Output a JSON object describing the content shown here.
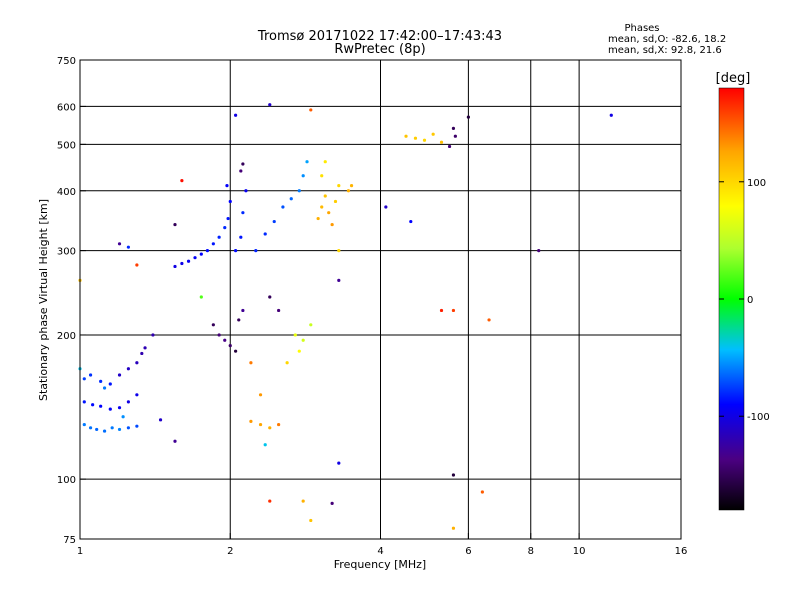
{
  "chart_data": {
    "type": "scatter",
    "title": "Tromsø 20171022 17:42:00–17:43:43",
    "subtitle": "RwPretec (8p)",
    "xlabel": "Frequency [MHz]",
    "ylabel": "Stationary phase Virtual Height [km]",
    "x_scale": "log",
    "y_scale": "log",
    "xlim": [
      1,
      16
    ],
    "ylim": [
      75,
      750
    ],
    "x_ticks": [
      1,
      2,
      4,
      6,
      8,
      10,
      16
    ],
    "y_ticks": [
      75,
      100,
      200,
      300,
      400,
      500,
      600,
      750
    ],
    "x_gridlines": [
      2,
      4,
      6,
      8,
      10
    ],
    "y_gridlines": [
      100,
      200,
      300,
      400,
      500,
      600
    ],
    "grid": true,
    "phases_box": {
      "title": "Phases",
      "line1": "mean, sd,O: -82.6, 18.2",
      "line2": "mean, sd,X:  92.8, 21.6"
    },
    "colorbar": {
      "label": "[deg]",
      "range": [
        -180,
        180
      ],
      "ticks": [
        100,
        0,
        -100
      ]
    },
    "series": [
      {
        "points": [
          {
            "x": 1.02,
            "y": 130,
            "phase": -60
          },
          {
            "x": 1.05,
            "y": 128,
            "phase": -62
          },
          {
            "x": 1.08,
            "y": 127,
            "phase": -65
          },
          {
            "x": 1.12,
            "y": 126,
            "phase": -63
          },
          {
            "x": 1.16,
            "y": 128,
            "phase": -60
          },
          {
            "x": 1.2,
            "y": 127,
            "phase": -58
          },
          {
            "x": 1.25,
            "y": 128,
            "phase": -70
          },
          {
            "x": 1.3,
            "y": 129,
            "phase": -72
          },
          {
            "x": 1.02,
            "y": 145,
            "phase": -85
          },
          {
            "x": 1.06,
            "y": 143,
            "phase": -88
          },
          {
            "x": 1.1,
            "y": 142,
            "phase": -90
          },
          {
            "x": 1.15,
            "y": 140,
            "phase": -92
          },
          {
            "x": 1.2,
            "y": 141,
            "phase": -95
          },
          {
            "x": 1.25,
            "y": 145,
            "phase": -100
          },
          {
            "x": 1.3,
            "y": 150,
            "phase": -98
          },
          {
            "x": 1.02,
            "y": 162,
            "phase": -75
          },
          {
            "x": 1.05,
            "y": 165,
            "phase": -78
          },
          {
            "x": 1.1,
            "y": 160,
            "phase": -80
          },
          {
            "x": 1.15,
            "y": 158,
            "phase": -85
          },
          {
            "x": 1.2,
            "y": 165,
            "phase": -110
          },
          {
            "x": 1.25,
            "y": 170,
            "phase": -112
          },
          {
            "x": 1.3,
            "y": 175,
            "phase": -115
          },
          {
            "x": 1.33,
            "y": 183,
            "phase": -120
          },
          {
            "x": 1.35,
            "y": 188,
            "phase": -118
          },
          {
            "x": 1.12,
            "y": 155,
            "phase": -60
          },
          {
            "x": 1.22,
            "y": 135,
            "phase": -55
          },
          {
            "x": 1.55,
            "y": 278,
            "phase": -100
          },
          {
            "x": 1.6,
            "y": 282,
            "phase": -98
          },
          {
            "x": 1.65,
            "y": 285,
            "phase": -95
          },
          {
            "x": 1.7,
            "y": 290,
            "phase": -92
          },
          {
            "x": 1.75,
            "y": 295,
            "phase": -90
          },
          {
            "x": 1.8,
            "y": 300,
            "phase": -88
          },
          {
            "x": 1.85,
            "y": 310,
            "phase": -85
          },
          {
            "x": 1.9,
            "y": 320,
            "phase": -82
          },
          {
            "x": 1.95,
            "y": 335,
            "phase": -80
          },
          {
            "x": 1.98,
            "y": 350,
            "phase": -85
          },
          {
            "x": 2.0,
            "y": 380,
            "phase": -90
          },
          {
            "x": 1.97,
            "y": 410,
            "phase": -92
          },
          {
            "x": 2.05,
            "y": 300,
            "phase": -88
          },
          {
            "x": 2.1,
            "y": 320,
            "phase": -85
          },
          {
            "x": 2.12,
            "y": 360,
            "phase": -80
          },
          {
            "x": 2.15,
            "y": 400,
            "phase": -95
          },
          {
            "x": 2.1,
            "y": 440,
            "phase": -140
          },
          {
            "x": 2.12,
            "y": 455,
            "phase": -150
          },
          {
            "x": 2.25,
            "y": 300,
            "phase": -82
          },
          {
            "x": 2.35,
            "y": 325,
            "phase": -80
          },
          {
            "x": 2.45,
            "y": 345,
            "phase": -75
          },
          {
            "x": 2.55,
            "y": 370,
            "phase": -70
          },
          {
            "x": 2.65,
            "y": 385,
            "phase": -65
          },
          {
            "x": 2.75,
            "y": 400,
            "phase": -60
          },
          {
            "x": 2.8,
            "y": 430,
            "phase": -55
          },
          {
            "x": 2.85,
            "y": 460,
            "phase": -50
          },
          {
            "x": 1.85,
            "y": 210,
            "phase": -150
          },
          {
            "x": 1.9,
            "y": 200,
            "phase": -140
          },
          {
            "x": 1.95,
            "y": 195,
            "phase": -135
          },
          {
            "x": 2.0,
            "y": 190,
            "phase": -145
          },
          {
            "x": 2.05,
            "y": 185,
            "phase": -160
          },
          {
            "x": 2.08,
            "y": 215,
            "phase": -150
          },
          {
            "x": 2.12,
            "y": 225,
            "phase": -130
          },
          {
            "x": 2.4,
            "y": 240,
            "phase": -150
          },
          {
            "x": 2.5,
            "y": 225,
            "phase": -140
          },
          {
            "x": 2.7,
            "y": 200,
            "phase": 70
          },
          {
            "x": 2.8,
            "y": 195,
            "phase": 60
          },
          {
            "x": 2.75,
            "y": 185,
            "phase": 80
          },
          {
            "x": 2.6,
            "y": 175,
            "phase": 100
          },
          {
            "x": 2.9,
            "y": 210,
            "phase": 55
          },
          {
            "x": 3.0,
            "y": 350,
            "phase": 120
          },
          {
            "x": 3.05,
            "y": 370,
            "phase": 115
          },
          {
            "x": 3.1,
            "y": 390,
            "phase": 110
          },
          {
            "x": 3.15,
            "y": 360,
            "phase": 125
          },
          {
            "x": 3.2,
            "y": 340,
            "phase": 130
          },
          {
            "x": 3.25,
            "y": 380,
            "phase": 105
          },
          {
            "x": 3.3,
            "y": 410,
            "phase": 100
          },
          {
            "x": 3.05,
            "y": 430,
            "phase": 95
          },
          {
            "x": 3.1,
            "y": 460,
            "phase": 90
          },
          {
            "x": 3.45,
            "y": 400,
            "phase": 120
          },
          {
            "x": 3.5,
            "y": 410,
            "phase": 118
          },
          {
            "x": 2.2,
            "y": 132,
            "phase": 130
          },
          {
            "x": 2.3,
            "y": 130,
            "phase": 125
          },
          {
            "x": 2.4,
            "y": 128,
            "phase": 120
          },
          {
            "x": 2.5,
            "y": 130,
            "phase": 140
          },
          {
            "x": 4.5,
            "y": 520,
            "phase": 110
          },
          {
            "x": 4.7,
            "y": 515,
            "phase": 105
          },
          {
            "x": 4.9,
            "y": 510,
            "phase": 100
          },
          {
            "x": 5.1,
            "y": 525,
            "phase": 108
          },
          {
            "x": 5.3,
            "y": 505,
            "phase": 112
          },
          {
            "x": 5.6,
            "y": 540,
            "phase": -150
          },
          {
            "x": 5.65,
            "y": 520,
            "phase": -145
          },
          {
            "x": 5.5,
            "y": 495,
            "phase": -140
          },
          {
            "x": 1.2,
            "y": 310,
            "phase": -130
          },
          {
            "x": 1.3,
            "y": 280,
            "phase": 160
          },
          {
            "x": 1.55,
            "y": 340,
            "phase": -150
          },
          {
            "x": 1.6,
            "y": 420,
            "phase": 175
          },
          {
            "x": 2.4,
            "y": 605,
            "phase": -110
          },
          {
            "x": 2.05,
            "y": 575,
            "phase": -100
          },
          {
            "x": 2.9,
            "y": 590,
            "phase": 150
          },
          {
            "x": 3.3,
            "y": 300,
            "phase": 100
          },
          {
            "x": 3.3,
            "y": 260,
            "phase": -130
          },
          {
            "x": 4.1,
            "y": 370,
            "phase": -110
          },
          {
            "x": 4.6,
            "y": 345,
            "phase": -90
          },
          {
            "x": 5.3,
            "y": 225,
            "phase": 170
          },
          {
            "x": 5.6,
            "y": 225,
            "phase": 160
          },
          {
            "x": 6.6,
            "y": 215,
            "phase": 150
          },
          {
            "x": 8.3,
            "y": 300,
            "phase": -140
          },
          {
            "x": 11.6,
            "y": 575,
            "phase": -100
          },
          {
            "x": 6.0,
            "y": 570,
            "phase": -160
          },
          {
            "x": 2.4,
            "y": 90,
            "phase": 165
          },
          {
            "x": 2.8,
            "y": 90,
            "phase": 120
          },
          {
            "x": 3.2,
            "y": 89,
            "phase": -140
          },
          {
            "x": 3.3,
            "y": 108,
            "phase": -100
          },
          {
            "x": 5.6,
            "y": 102,
            "phase": -160
          },
          {
            "x": 6.4,
            "y": 94,
            "phase": 150
          },
          {
            "x": 5.6,
            "y": 79,
            "phase": 120
          },
          {
            "x": 2.9,
            "y": 82,
            "phase": 110
          },
          {
            "x": 1.0,
            "y": 260,
            "phase": 110
          },
          {
            "x": 1.25,
            "y": 305,
            "phase": -80
          },
          {
            "x": 1.4,
            "y": 200,
            "phase": -120
          },
          {
            "x": 1.75,
            "y": 240,
            "phase": 20
          },
          {
            "x": 2.3,
            "y": 150,
            "phase": 130
          },
          {
            "x": 2.2,
            "y": 175,
            "phase": 140
          },
          {
            "x": 2.35,
            "y": 118,
            "phase": -40
          },
          {
            "x": 1.55,
            "y": 120,
            "phase": -130
          },
          {
            "x": 1.45,
            "y": 133,
            "phase": -110
          },
          {
            "x": 1.0,
            "y": 170,
            "phase": -40
          }
        ]
      }
    ]
  }
}
